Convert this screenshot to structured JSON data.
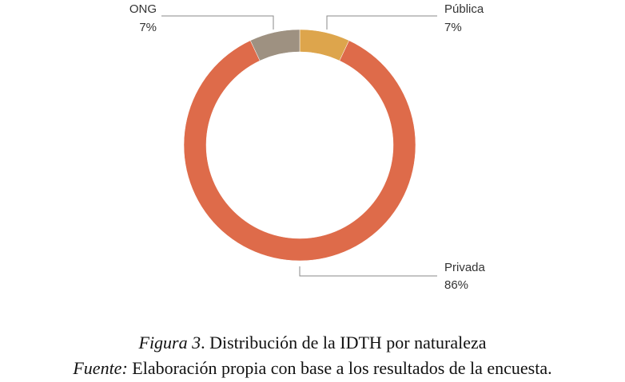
{
  "chart_data": {
    "type": "pie",
    "style": "donut",
    "categories": [
      "Pública",
      "Privada",
      "ONG"
    ],
    "values": [
      7,
      86,
      7
    ],
    "value_labels": [
      "7%",
      "86%",
      "7%"
    ],
    "colors": [
      "#DDA54C",
      "#DE6B4A",
      "#9E9181"
    ],
    "title": "",
    "legend": "none"
  },
  "caption": {
    "figure_label": "Figura 3",
    "figure_title": ". Distribución de la IDTH por naturaleza",
    "source_label": "Fuente:",
    "source_text": " Elaboración propia con base a los resultados de la encuesta."
  }
}
